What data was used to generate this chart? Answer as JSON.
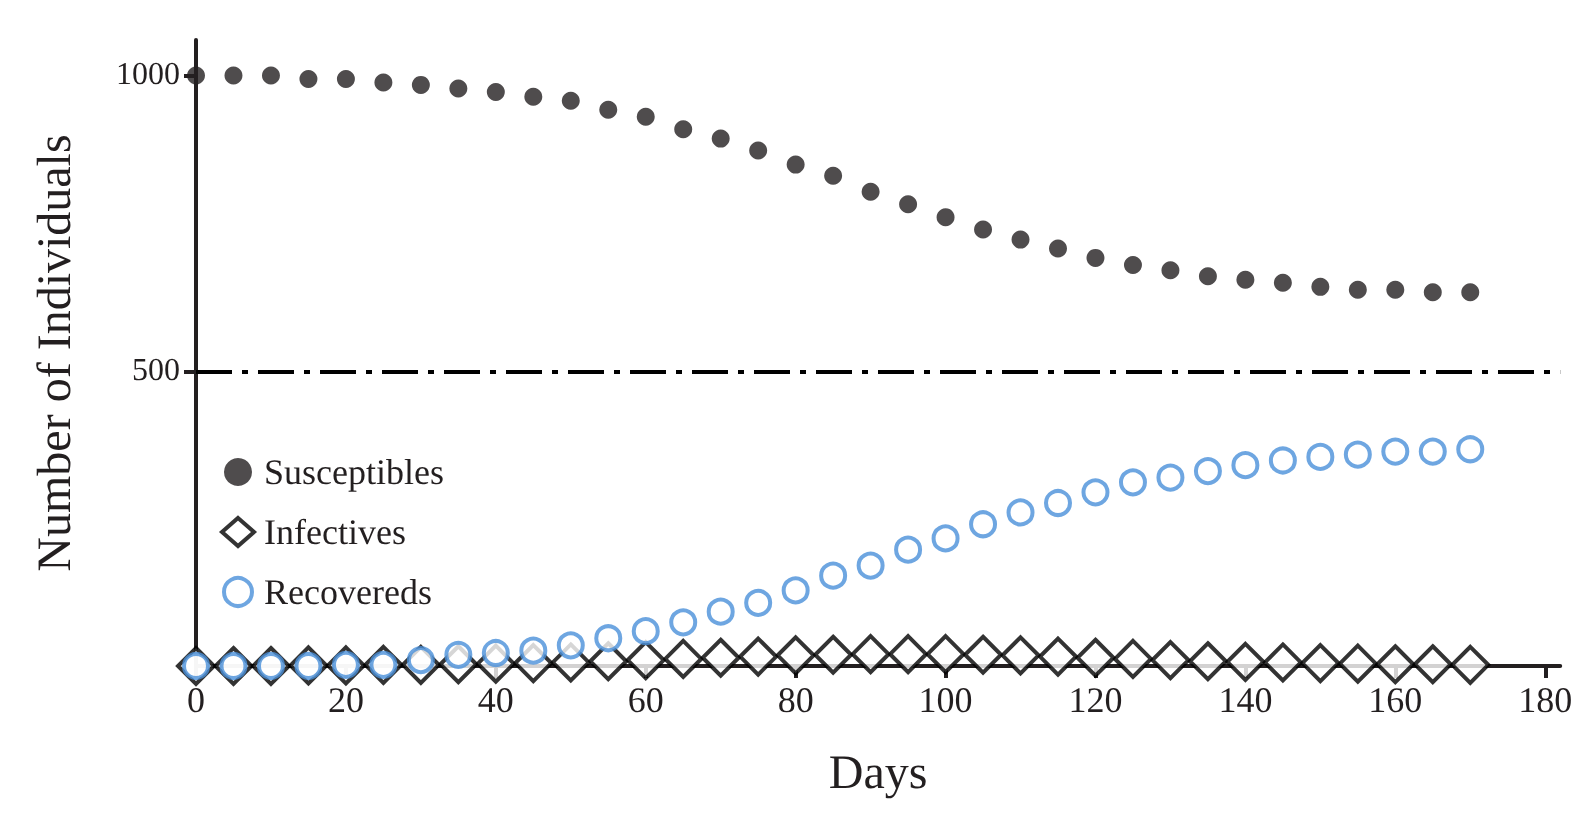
{
  "chart_data": {
    "type": "scatter",
    "xlabel": "Days",
    "ylabel": "Number of Individuals",
    "x": [
      0,
      5,
      10,
      15,
      20,
      25,
      30,
      35,
      40,
      45,
      50,
      55,
      60,
      65,
      70,
      75,
      80,
      85,
      90,
      95,
      100,
      105,
      110,
      115,
      120,
      125,
      130,
      135,
      140,
      145,
      150,
      155,
      160,
      165,
      170
    ],
    "series": [
      {
        "name": "Susceptibles",
        "color": "#231f20",
        "marker": "circle",
        "values": [
          1000,
          1000,
          1000,
          994,
          994,
          988,
          984,
          978,
          972,
          964,
          957,
          942,
          930,
          909,
          893,
          873,
          849,
          830,
          803,
          782,
          760,
          739,
          722,
          707,
          691,
          679,
          670,
          660,
          654,
          649,
          642,
          637,
          637,
          633,
          633
        ]
      },
      {
        "name": "Infectives",
        "color": "#000000",
        "marker": "diamond",
        "values": [
          0,
          0,
          0,
          1,
          1,
          2,
          2,
          3,
          4,
          5,
          6,
          8,
          10,
          12,
          14,
          16,
          18,
          19,
          20,
          20,
          20,
          19,
          18,
          16,
          14,
          12,
          10,
          8,
          7,
          6,
          5,
          4,
          3,
          3,
          2
        ]
      },
      {
        "name": "Recovereds",
        "color": "#4a90d9",
        "marker": "circle",
        "values": [
          0,
          0,
          0,
          0,
          2,
          2,
          10,
          19,
          22,
          26,
          35,
          47,
          59,
          74,
          92,
          107,
          128,
          153,
          170,
          197,
          216,
          240,
          260,
          276,
          294,
          311,
          319,
          330,
          340,
          348,
          354,
          358,
          363,
          363,
          367
        ]
      }
    ],
    "xlim": [
      0,
      182
    ],
    "xticks": [
      0,
      20,
      40,
      60,
      80,
      100,
      120,
      140,
      160,
      180
    ],
    "ylim": [
      0,
      1060
    ],
    "yticks": [
      500,
      1000
    ],
    "ref_lines": [
      {
        "axis": "y",
        "value": 500,
        "line_style": "dashed",
        "color": "#000000"
      }
    ],
    "legend": "left",
    "grid": false
  }
}
